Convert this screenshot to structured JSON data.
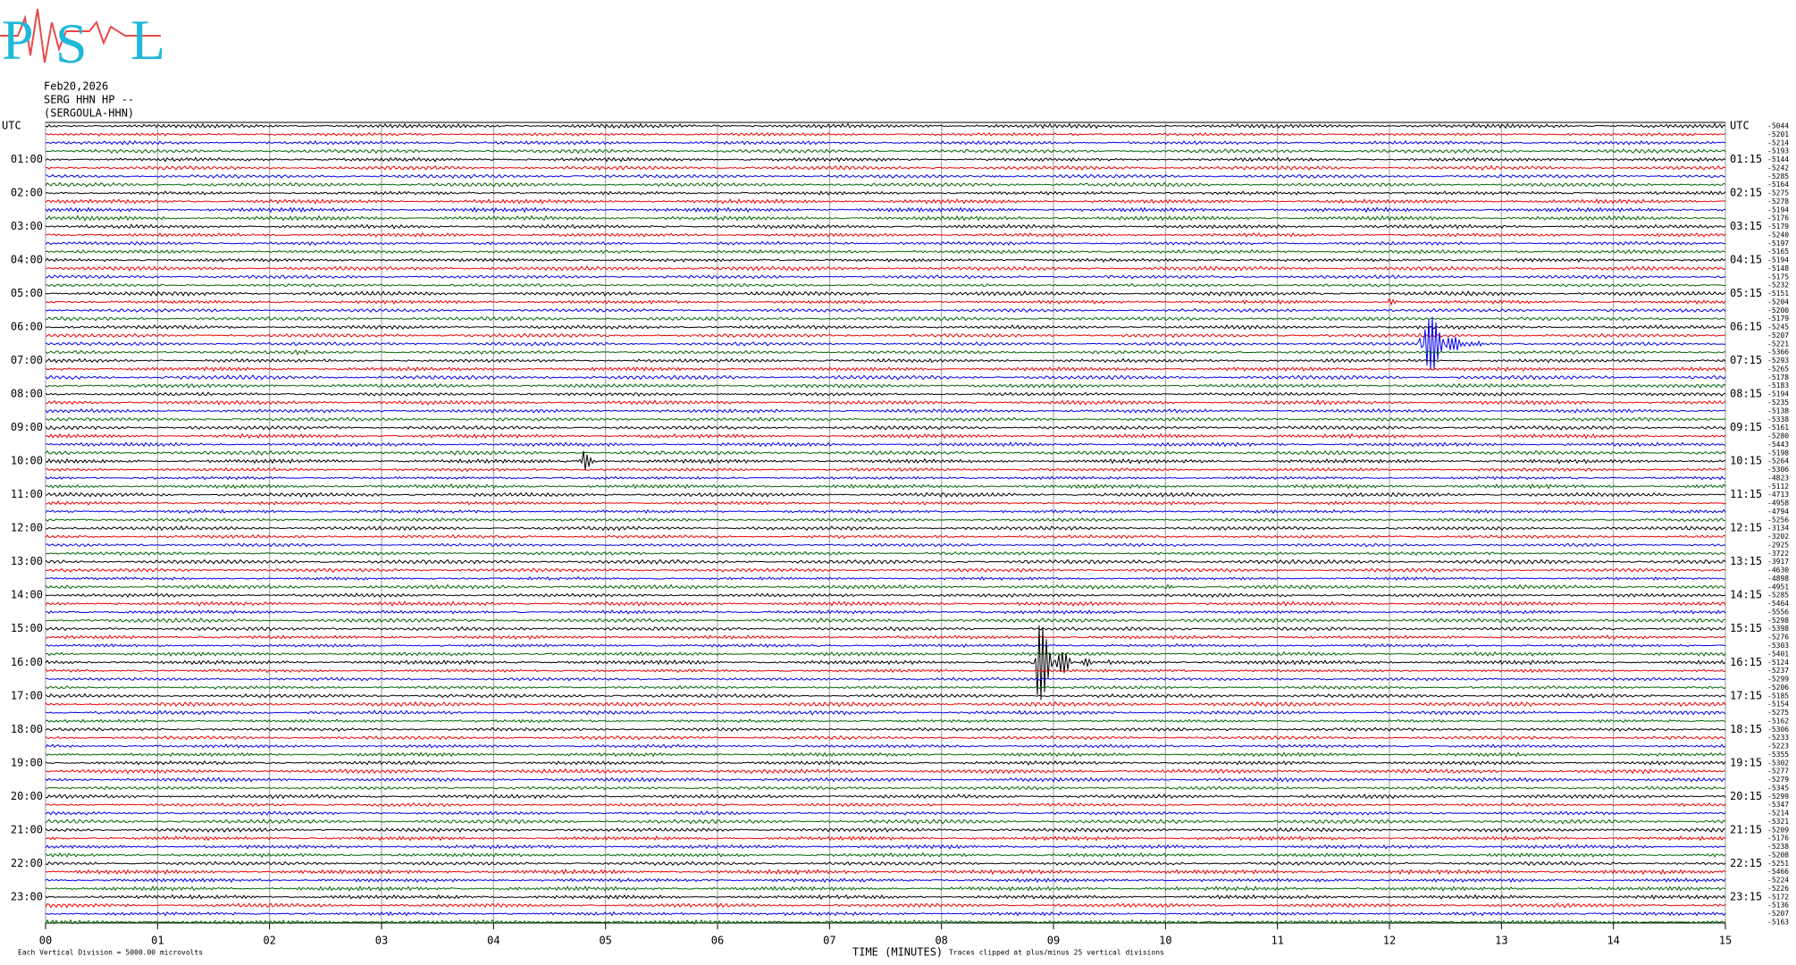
{
  "logo": {
    "letters": [
      "P",
      "S",
      "L"
    ]
  },
  "header": {
    "date": "Feb20,2026",
    "channel": "SERG HHN HP --",
    "station": "(SERGOULA-HHN)"
  },
  "left_labels": [
    "UTC",
    "01:00",
    "02:00",
    "03:00",
    "04:00",
    "05:00",
    "06:00",
    "07:00",
    "08:00",
    "09:00",
    "10:00",
    "11:00",
    "12:00",
    "13:00",
    "14:00",
    "15:00",
    "16:00",
    "17:00",
    "18:00",
    "19:00",
    "20:00",
    "21:00",
    "22:00",
    "23:00"
  ],
  "right_labels": [
    "UTC",
    "01:15",
    "02:15",
    "03:15",
    "04:15",
    "05:15",
    "06:15",
    "07:15",
    "08:15",
    "09:15",
    "10:15",
    "11:15",
    "12:15",
    "13:15",
    "14:15",
    "15:15",
    "16:15",
    "17:15",
    "18:15",
    "19:15",
    "20:15",
    "21:15",
    "22:15",
    "23:15"
  ],
  "trace_offsets": [
    -5044,
    -5201,
    -5214,
    -5193,
    -5144,
    -5242,
    -5285,
    -5164,
    -5275,
    -5278,
    -5194,
    -5176,
    -5179,
    -5240,
    -5197,
    -5165,
    -5194,
    -5148,
    -5175,
    -5232,
    -5151,
    -5204,
    -5200,
    -5179,
    -5245,
    -5207,
    -5221,
    -5366,
    -5293,
    -5265,
    -5178,
    -5183,
    -5194,
    -5235,
    -5138,
    -5338,
    -5161,
    -5280,
    -5443,
    -5198,
    -5264,
    -5306,
    -4823,
    -5112,
    -4713,
    -4958,
    -4794,
    -5256,
    -3134,
    -3202,
    -2925,
    -3722,
    -3917,
    -4630,
    -4898,
    -4951,
    -5285,
    -5464,
    -5556,
    -5298,
    -5398,
    -5276,
    -5303,
    -5401,
    -5124,
    -5237,
    -5299,
    -5206,
    -5185,
    -5154,
    -5275,
    -5162,
    -5306,
    -5233,
    -5223,
    -5355,
    -5302,
    -5277,
    -5279,
    -5345,
    -5299,
    -5347,
    -5214,
    -5321,
    -5209,
    -5176,
    -5238,
    -5208,
    -5251,
    -5466,
    -5224,
    -5226,
    -5172,
    -5136,
    -5207,
    -5163
  ],
  "x_labels": [
    "00",
    "01",
    "02",
    "03",
    "04",
    "05",
    "06",
    "07",
    "08",
    "09",
    "10",
    "11",
    "12",
    "13",
    "14",
    "15"
  ],
  "footer": {
    "division": "Each Vertical Division = 5000.00 microvolts",
    "xlabel": "TIME (MINUTES)",
    "clip": "Traces clipped at plus/minus 25 vertical divisions"
  }
}
